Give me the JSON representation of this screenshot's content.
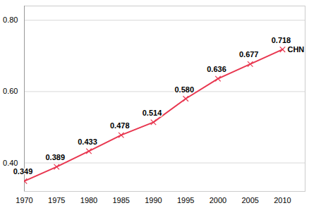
{
  "chart_data": {
    "type": "line",
    "x": [
      1970,
      1975,
      1980,
      1985,
      1990,
      1995,
      2000,
      2005,
      2010
    ],
    "series": [
      {
        "name": "CHN",
        "color": "#e8364f",
        "marker": "x",
        "values": [
          0.349,
          0.389,
          0.433,
          0.478,
          0.514,
          0.58,
          0.636,
          0.677,
          0.718
        ],
        "value_labels": [
          "0.349",
          "0.389",
          "0.433",
          "0.478",
          "0.514",
          "0.580",
          "0.636",
          "0.677",
          "0.718"
        ]
      }
    ],
    "xlim": [
      1970,
      2013.5
    ],
    "xticks": [
      1970,
      1975,
      1980,
      1985,
      1990,
      1995,
      2000,
      2005,
      2010
    ],
    "ylim": [
      0.32,
      0.84
    ],
    "yticks": [
      {
        "value": 0.4,
        "label": "0.40"
      },
      {
        "value": 0.6,
        "label": "0.60"
      },
      {
        "value": 0.8,
        "label": "0.80"
      }
    ],
    "grid": true,
    "data_labels": true
  }
}
